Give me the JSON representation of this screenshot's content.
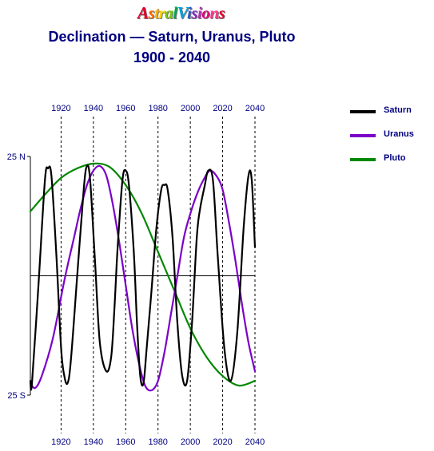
{
  "logo": {
    "text": "AstralVisions",
    "colors": [
      "#e4002b",
      "#ff6a00",
      "#ffb400",
      "#ffd800",
      "#7ac70c",
      "#00a651",
      "#00a0e0",
      "#2e5cc8",
      "#7b2fbe",
      "#b52fb0",
      "#e4007c",
      "#ff3a8c",
      "#e4002b"
    ]
  },
  "title_line1": "Declination — Saturn, Uranus, Pluto",
  "title_line2": "1900 - 2040",
  "chart_data": {
    "type": "line",
    "title": "Declination — Saturn, Uranus, Pluto",
    "subtitle": "1900 - 2040",
    "xlabel": "",
    "ylabel": "",
    "x_ticks": [
      1920,
      1940,
      1960,
      1980,
      2000,
      2020,
      2040
    ],
    "xlim": [
      1901,
      2040
    ],
    "ylim": [
      -25,
      25
    ],
    "y_tick_labels": [
      {
        "value": 25,
        "label": "25 N"
      },
      {
        "value": -25,
        "label": "25 S"
      }
    ],
    "grid": "vertical dashed lines at x ticks",
    "legend_position": "top-right",
    "series": [
      {
        "name": "Saturn",
        "color": "#000000",
        "points": [
          [
            1901,
            -22
          ],
          [
            1902,
            -22.5
          ],
          [
            1906,
            -2
          ],
          [
            1910,
            20
          ],
          [
            1912,
            22.5
          ],
          [
            1914,
            21
          ],
          [
            1917,
            5
          ],
          [
            1920,
            -15
          ],
          [
            1922,
            -21
          ],
          [
            1924,
            -22.5
          ],
          [
            1926,
            -18
          ],
          [
            1930,
            0
          ],
          [
            1934,
            18
          ],
          [
            1936,
            23
          ],
          [
            1938,
            20
          ],
          [
            1941,
            3
          ],
          [
            1944,
            -14
          ],
          [
            1948,
            -20
          ],
          [
            1951,
            -17
          ],
          [
            1953,
            -7
          ],
          [
            1955,
            6
          ],
          [
            1958,
            20
          ],
          [
            1960,
            22
          ],
          [
            1962,
            19
          ],
          [
            1965,
            5
          ],
          [
            1967,
            -10
          ],
          [
            1969,
            -21
          ],
          [
            1971,
            -22.5
          ],
          [
            1973,
            -15
          ],
          [
            1976,
            -3
          ],
          [
            1979,
            10
          ],
          [
            1982,
            18
          ],
          [
            1984,
            19
          ],
          [
            1986,
            18
          ],
          [
            1989,
            8
          ],
          [
            1992,
            -10
          ],
          [
            1995,
            -21
          ],
          [
            1998,
            -22
          ],
          [
            2001,
            -10
          ],
          [
            2004,
            8
          ],
          [
            2006,
            14
          ],
          [
            2009,
            19
          ],
          [
            2011,
            22
          ],
          [
            2014,
            20
          ],
          [
            2017,
            4
          ],
          [
            2021,
            -15
          ],
          [
            2025,
            -22
          ],
          [
            2029,
            -12
          ],
          [
            2033,
            10
          ],
          [
            2036,
            21
          ],
          [
            2038,
            20
          ],
          [
            2040,
            6
          ]
        ]
      },
      {
        "name": "Uranus",
        "color": "#7b00c8",
        "points": [
          [
            1901,
            -22.5
          ],
          [
            1904,
            -23.5
          ],
          [
            1908,
            -21
          ],
          [
            1915,
            -13
          ],
          [
            1922,
            -1
          ],
          [
            1928,
            8
          ],
          [
            1932,
            14
          ],
          [
            1936,
            19
          ],
          [
            1940,
            22
          ],
          [
            1944,
            23
          ],
          [
            1948,
            21
          ],
          [
            1952,
            15
          ],
          [
            1956,
            7
          ],
          [
            1960,
            -2
          ],
          [
            1964,
            -11
          ],
          [
            1968,
            -18
          ],
          [
            1972,
            -23
          ],
          [
            1976,
            -24
          ],
          [
            1980,
            -22
          ],
          [
            1984,
            -16
          ],
          [
            1988,
            -8
          ],
          [
            1992,
            0
          ],
          [
            1996,
            8
          ],
          [
            2000,
            13
          ],
          [
            2004,
            17
          ],
          [
            2008,
            20
          ],
          [
            2012,
            22
          ],
          [
            2016,
            21
          ],
          [
            2020,
            18
          ],
          [
            2024,
            11
          ],
          [
            2028,
            3
          ],
          [
            2032,
            -6
          ],
          [
            2036,
            -14
          ],
          [
            2040,
            -20
          ]
        ]
      },
      {
        "name": "Pluto",
        "color": "#008800",
        "points": [
          [
            1901,
            13.5
          ],
          [
            1910,
            17
          ],
          [
            1920,
            20.5
          ],
          [
            1930,
            22.5
          ],
          [
            1940,
            23.5
          ],
          [
            1950,
            22.8
          ],
          [
            1960,
            19
          ],
          [
            1970,
            13
          ],
          [
            1980,
            5
          ],
          [
            1990,
            -3
          ],
          [
            2000,
            -11
          ],
          [
            2010,
            -17
          ],
          [
            2020,
            -21
          ],
          [
            2030,
            -23
          ],
          [
            2040,
            -22
          ]
        ]
      }
    ]
  }
}
